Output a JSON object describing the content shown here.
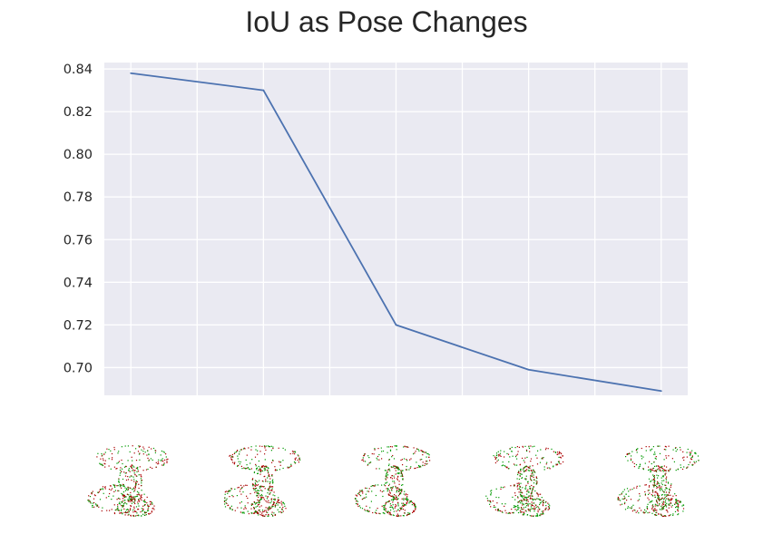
{
  "title": "IoU as Pose Changes",
  "chart_data": {
    "type": "line",
    "title": "IoU as Pose Changes",
    "xlabel": "",
    "ylabel": "",
    "x": [
      0,
      1,
      2,
      3,
      4
    ],
    "series": [
      {
        "values": [
          0.838,
          0.83,
          0.72,
          0.699,
          0.689
        ],
        "color": "#4c72b0"
      }
    ],
    "ylim": [
      0.687,
      0.843
    ],
    "xlim": [
      -0.2,
      4.2
    ],
    "yticks": [
      0.7,
      0.72,
      0.74,
      0.76,
      0.78,
      0.8,
      0.82,
      0.84
    ],
    "ytick_labels": [
      "0.70",
      "0.72",
      "0.74",
      "0.76",
      "0.78",
      "0.80",
      "0.82",
      "0.84"
    ],
    "xgrid": [
      0,
      0.5,
      1,
      1.5,
      2,
      2.5,
      3,
      3.5,
      4
    ],
    "grid": true,
    "background": "#eaeaf2",
    "grid_color": "#ffffff"
  },
  "thumbnails": {
    "count": 5,
    "colors": [
      "#009900",
      "#aa0000"
    ]
  }
}
